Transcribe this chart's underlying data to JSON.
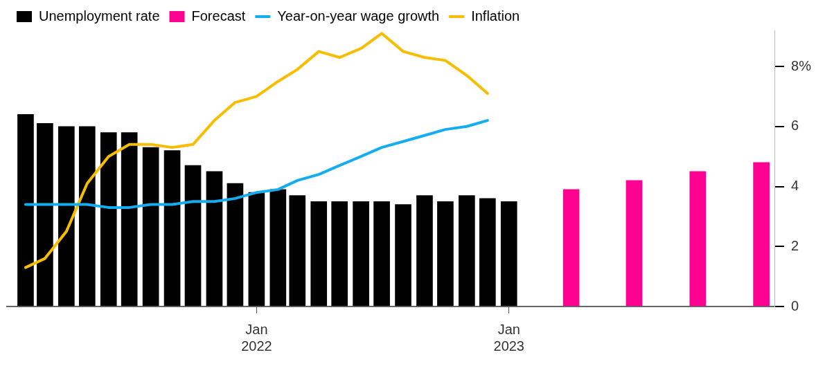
{
  "chart_data": {
    "type": "bar",
    "series": [
      {
        "name": "Unemployment rate",
        "color": "#000000",
        "x": [
          "2021-02",
          "2021-03",
          "2021-04",
          "2021-05",
          "2021-06",
          "2021-07",
          "2021-08",
          "2021-09",
          "2021-10",
          "2021-11",
          "2021-12",
          "2022-01",
          "2022-02",
          "2022-03",
          "2022-04",
          "2022-05",
          "2022-06",
          "2022-07",
          "2022-08",
          "2022-09",
          "2022-10",
          "2022-11",
          "2022-12",
          "2023-01"
        ],
        "values": [
          6.4,
          6.1,
          6.0,
          6.0,
          5.8,
          5.8,
          5.3,
          5.2,
          4.7,
          4.5,
          4.1,
          3.8,
          3.9,
          3.7,
          3.5,
          3.5,
          3.5,
          3.5,
          3.4,
          3.7,
          3.5,
          3.7,
          3.6,
          3.5
        ]
      },
      {
        "name": "Forecast",
        "color": "#ff0090",
        "x": [
          "2023-04",
          "2023-07",
          "2023-10",
          "2024-01"
        ],
        "values": [
          3.9,
          4.2,
          4.5,
          4.8
        ]
      },
      {
        "name": "Year-on-year wage growth",
        "type": "line",
        "color": "#14aef0",
        "x": [
          "2021-02",
          "2021-03",
          "2021-04",
          "2021-05",
          "2021-06",
          "2021-07",
          "2021-08",
          "2021-09",
          "2021-10",
          "2021-11",
          "2021-12",
          "2022-01",
          "2022-02",
          "2022-03",
          "2022-04",
          "2022-05",
          "2022-06",
          "2022-07",
          "2022-08",
          "2022-09",
          "2022-10",
          "2022-11",
          "2022-12"
        ],
        "values": [
          3.4,
          3.4,
          3.4,
          3.4,
          3.3,
          3.3,
          3.4,
          3.4,
          3.5,
          3.5,
          3.6,
          3.8,
          3.9,
          4.2,
          4.4,
          4.7,
          5.0,
          5.3,
          5.5,
          5.7,
          5.9,
          6.0,
          6.2
        ]
      },
      {
        "name": "Inflation",
        "type": "line",
        "color": "#f7bd00",
        "x": [
          "2021-02",
          "2021-03",
          "2021-04",
          "2021-05",
          "2021-06",
          "2021-07",
          "2021-08",
          "2021-09",
          "2021-10",
          "2021-11",
          "2021-12",
          "2022-01",
          "2022-02",
          "2022-03",
          "2022-04",
          "2022-05",
          "2022-06",
          "2022-07",
          "2022-08",
          "2022-09",
          "2022-10",
          "2022-11",
          "2022-12"
        ],
        "values": [
          1.3,
          1.6,
          2.5,
          4.1,
          5.0,
          5.4,
          5.4,
          5.3,
          5.4,
          6.2,
          6.8,
          7.0,
          7.5,
          7.9,
          8.5,
          8.3,
          8.6,
          9.1,
          8.5,
          8.3,
          8.2,
          7.7,
          7.1
        ]
      }
    ],
    "xlim": [
      "2021-01-05",
      "2024-01-20"
    ],
    "xticks": [
      {
        "value": "2022-01",
        "label": "Jan 2022"
      },
      {
        "value": "2023-01",
        "label": "Jan 2023"
      }
    ],
    "ylim": [
      0,
      9.2
    ],
    "yticks": [
      0,
      2,
      4,
      6,
      {
        "value": 8,
        "label": "8%"
      }
    ],
    "legend": "top left"
  }
}
